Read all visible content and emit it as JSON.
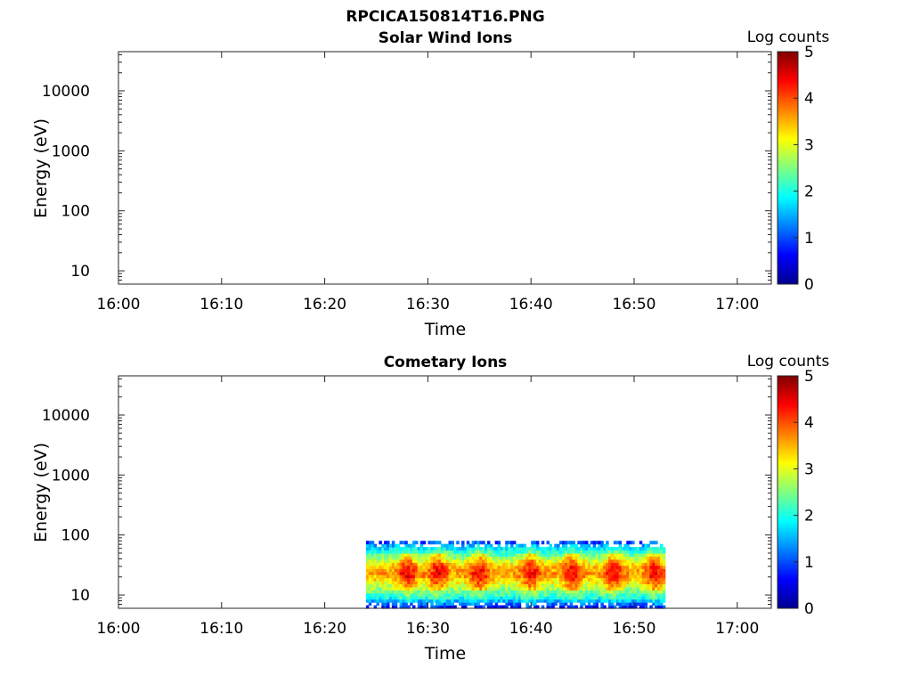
{
  "figure": {
    "title": "RPCICA150814T16.PNG"
  },
  "chart_data": [
    {
      "type": "heatmap",
      "title": "Solar Wind Ions",
      "xlabel": "Time",
      "ylabel": "Energy (eV)",
      "yscale": "log",
      "ylim": [
        6,
        45000
      ],
      "x_ticks": [
        "16:00",
        "16:10",
        "16:20",
        "16:30",
        "16:40",
        "16:50",
        "17:00"
      ],
      "y_ticks": [
        "10",
        "100",
        "1000",
        "10000"
      ],
      "colorbar": {
        "label": "Log counts",
        "range": [
          0,
          5
        ],
        "ticks": [
          "0",
          "1",
          "2",
          "3",
          "4",
          "5"
        ],
        "colormap": "jet"
      },
      "data_extent": null
    },
    {
      "type": "heatmap",
      "title": "Cometary Ions",
      "xlabel": "Time",
      "ylabel": "Energy (eV)",
      "yscale": "log",
      "ylim": [
        6,
        45000
      ],
      "x_ticks": [
        "16:00",
        "16:10",
        "16:20",
        "16:30",
        "16:40",
        "16:50",
        "17:00"
      ],
      "y_ticks": [
        "10",
        "100",
        "1000",
        "10000"
      ],
      "colorbar": {
        "label": "Log counts",
        "range": [
          0,
          5
        ],
        "ticks": [
          "0",
          "1",
          "2",
          "3",
          "4",
          "5"
        ],
        "colormap": "jet"
      },
      "data_extent": {
        "time_start": "16:24",
        "time_end": "16:53",
        "energy_min_eV": 6,
        "energy_max_eV": 80
      },
      "energy_profile_eV": [
        {
          "energy": 70,
          "level": 1.3
        },
        {
          "energy": 55,
          "level": 2.0
        },
        {
          "energy": 40,
          "level": 2.7
        },
        {
          "energy": 30,
          "level": 3.4
        },
        {
          "energy": 22,
          "level": 3.6
        },
        {
          "energy": 16,
          "level": 3.0
        },
        {
          "energy": 12,
          "level": 2.5
        },
        {
          "energy": 9,
          "level": 1.9
        },
        {
          "energy": 7,
          "level": 1.0
        }
      ],
      "peak_times": [
        "16:28",
        "16:31",
        "16:35",
        "16:40",
        "16:44",
        "16:48",
        "16:52"
      ]
    }
  ]
}
